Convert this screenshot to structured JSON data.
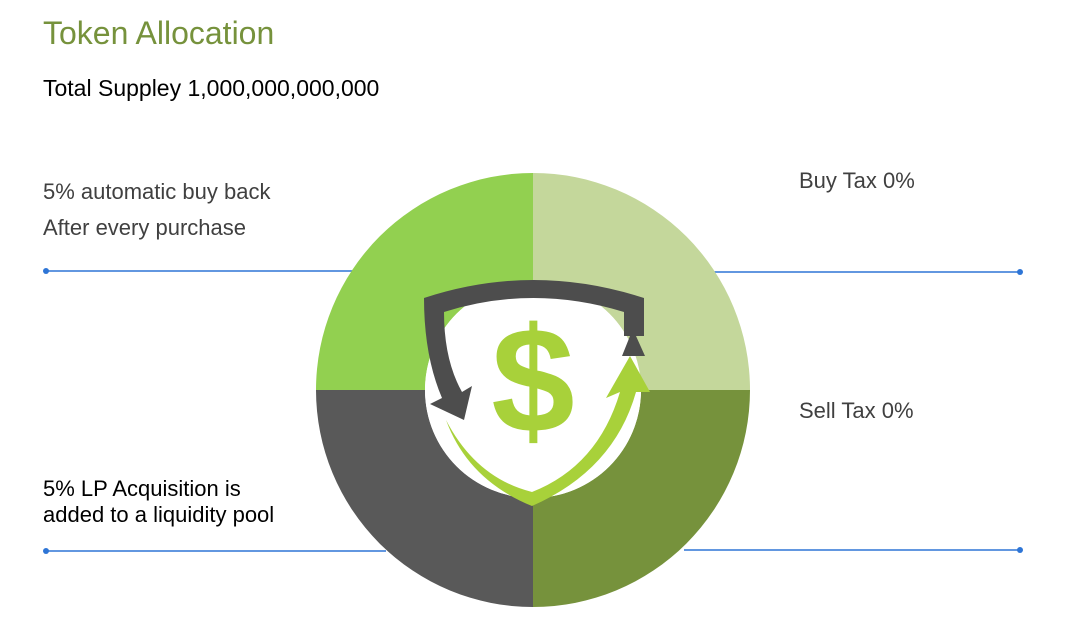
{
  "title": "Token Allocation",
  "subtitle": "Total Suppley 1,000,000,000,000",
  "labels": {
    "top_left": [
      "5% automatic buy back",
      "After every purchase"
    ],
    "top_right": "Buy Tax 0%",
    "bottom_right": "Sell Tax 0%",
    "bottom_left": [
      "5% LP Acquisition is",
      "added to a liquidity pool"
    ]
  },
  "colors": {
    "title": "#76923c",
    "quadrant_top_left": "#92d050",
    "quadrant_top_right": "#c4d79b",
    "quadrant_bottom_right": "#76923c",
    "quadrant_bottom_left": "#595959",
    "connector_line": "#2e75d6",
    "dollar": "#a8d13a",
    "dark_arrow": "#4d4d4d"
  },
  "icons": {
    "center": "dollar-shield-cycle-icon"
  }
}
